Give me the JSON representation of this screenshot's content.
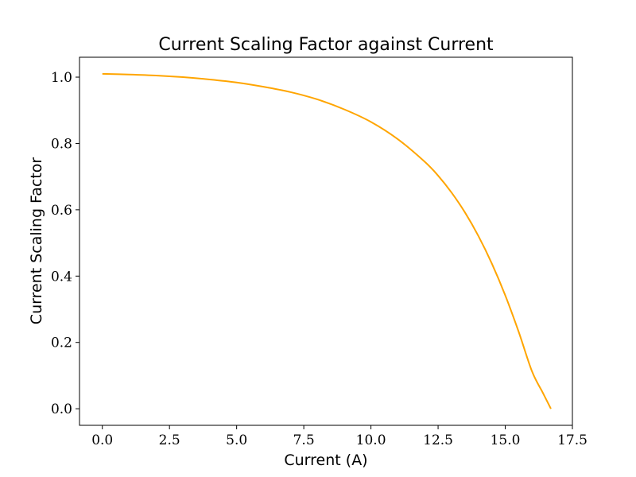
{
  "chart_data": {
    "type": "line",
    "title": "Current Scaling Factor against Current",
    "xlabel": "Current (A)",
    "ylabel": "Current Scaling Factor",
    "xlim": [
      -0.85,
      17.5
    ],
    "ylim": [
      -0.05,
      1.06
    ],
    "xticks": [
      0.0,
      2.5,
      5.0,
      7.5,
      10.0,
      12.5,
      15.0,
      17.5
    ],
    "xtick_labels": [
      "0.0",
      "2.5",
      "5.0",
      "7.5",
      "10.0",
      "12.5",
      "15.0",
      "17.5"
    ],
    "yticks": [
      0.0,
      0.2,
      0.4,
      0.6,
      0.8,
      1.0
    ],
    "ytick_labels": [
      "0.0",
      "0.2",
      "0.4",
      "0.6",
      "0.8",
      "1.0"
    ],
    "grid": false,
    "series": [
      {
        "color": "#FFA500",
        "x": [
          0,
          1,
          2,
          3,
          4,
          5,
          6,
          7,
          8,
          9,
          10,
          11,
          12,
          12.5,
          13,
          13.5,
          14,
          14.5,
          15,
          15.5,
          16,
          16.4,
          16.7
        ],
        "y": [
          1.01,
          1.008,
          1.005,
          1.0,
          0.993,
          0.984,
          0.971,
          0.955,
          0.933,
          0.903,
          0.865,
          0.813,
          0.745,
          0.703,
          0.652,
          0.592,
          0.521,
          0.438,
          0.342,
          0.232,
          0.112,
          0.048,
          0.0
        ]
      }
    ]
  }
}
